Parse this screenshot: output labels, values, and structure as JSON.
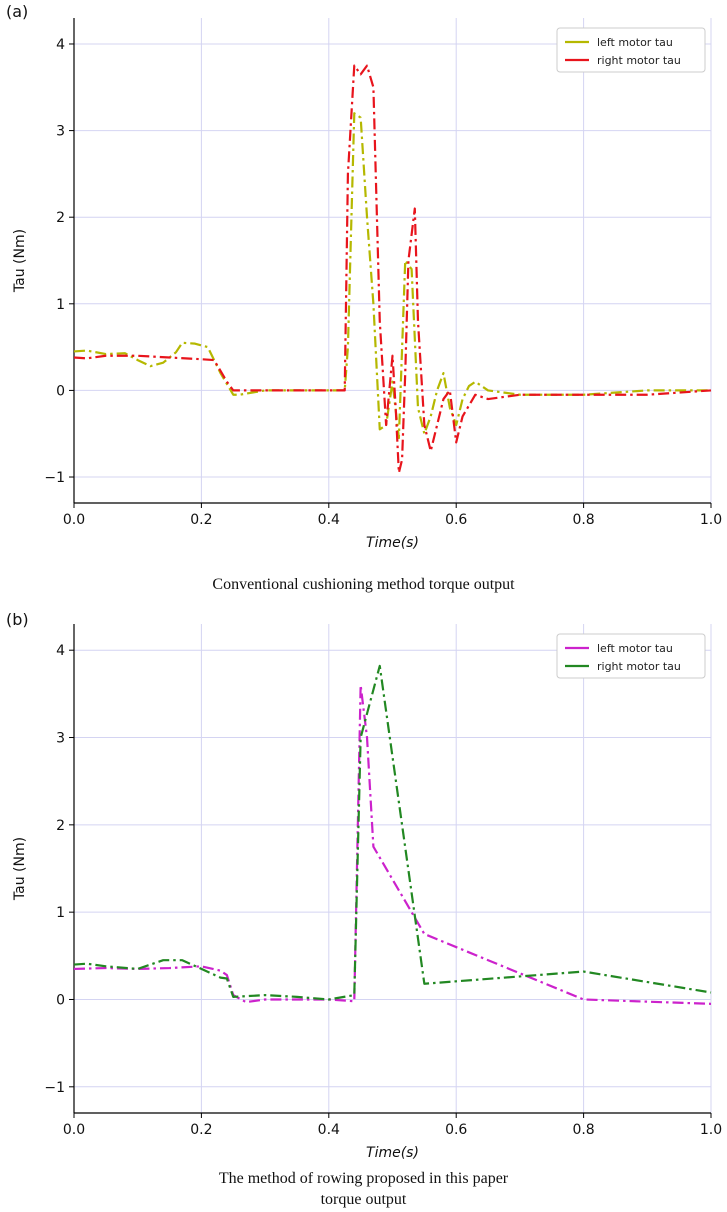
{
  "charts": [
    {
      "panel_label": "(a)",
      "caption_lines": [
        "Conventional cushioning method torque output"
      ]
    },
    {
      "panel_label": "(b)",
      "caption_lines": [
        "The method of rowing proposed in this paper",
        "torque output"
      ]
    }
  ],
  "chart_data": [
    {
      "type": "line",
      "xlabel": "Time(s)",
      "ylabel": "Tau (Nm)",
      "xlim": [
        0,
        1.0
      ],
      "ylim": [
        -1.3,
        4.3
      ],
      "xticks": [
        0.0,
        0.2,
        0.4,
        0.6,
        0.8,
        1.0
      ],
      "xtick_labels": [
        "0.0",
        "0.2",
        "0.4",
        "0.6",
        "0.8",
        "1.0"
      ],
      "yticks": [
        -1,
        0,
        1,
        2,
        3,
        4
      ],
      "ytick_labels": [
        "−1",
        "0",
        "1",
        "2",
        "3",
        "4"
      ],
      "grid": true,
      "legend_position": "top-right",
      "series": [
        {
          "name": "left motor tau",
          "color": "#b5b800",
          "dash": "dashdot",
          "x": [
            0.0,
            0.02,
            0.05,
            0.08,
            0.1,
            0.12,
            0.14,
            0.16,
            0.17,
            0.19,
            0.21,
            0.23,
            0.25,
            0.26,
            0.3,
            0.35,
            0.4,
            0.425,
            0.43,
            0.44,
            0.45,
            0.46,
            0.47,
            0.48,
            0.49,
            0.5,
            0.51,
            0.52,
            0.53,
            0.54,
            0.55,
            0.56,
            0.57,
            0.58,
            0.59,
            0.6,
            0.61,
            0.62,
            0.63,
            0.65,
            0.7,
            0.8,
            0.9,
            1.0
          ],
          "y": [
            0.45,
            0.46,
            0.42,
            0.43,
            0.35,
            0.28,
            0.32,
            0.44,
            0.55,
            0.54,
            0.5,
            0.2,
            -0.05,
            -0.05,
            0.0,
            0.0,
            0.0,
            0.0,
            0.5,
            3.2,
            3.15,
            2.0,
            1.0,
            -0.45,
            -0.4,
            0.1,
            -0.55,
            1.5,
            1.4,
            -0.2,
            -0.5,
            -0.3,
            0.0,
            0.2,
            -0.2,
            -0.4,
            -0.1,
            0.05,
            0.1,
            0.0,
            -0.05,
            -0.05,
            0.0,
            0.0
          ]
        },
        {
          "name": "right motor tau",
          "color": "#e8141c",
          "dash": "dashdot",
          "x": [
            0.0,
            0.02,
            0.05,
            0.1,
            0.15,
            0.2,
            0.22,
            0.24,
            0.25,
            0.3,
            0.35,
            0.4,
            0.425,
            0.43,
            0.44,
            0.45,
            0.46,
            0.47,
            0.48,
            0.49,
            0.5,
            0.505,
            0.51,
            0.515,
            0.52,
            0.525,
            0.53,
            0.535,
            0.54,
            0.55,
            0.56,
            0.57,
            0.58,
            0.59,
            0.6,
            0.61,
            0.63,
            0.65,
            0.7,
            0.8,
            0.9,
            1.0
          ],
          "y": [
            0.38,
            0.37,
            0.4,
            0.4,
            0.38,
            0.36,
            0.35,
            0.1,
            0.0,
            0.0,
            0.0,
            0.0,
            0.0,
            2.5,
            3.75,
            3.65,
            3.75,
            3.5,
            0.8,
            -0.4,
            0.4,
            -0.2,
            -0.95,
            -0.8,
            0.2,
            1.5,
            1.8,
            2.1,
            0.8,
            -0.4,
            -0.7,
            -0.4,
            -0.1,
            0.0,
            -0.6,
            -0.3,
            -0.05,
            -0.1,
            -0.05,
            -0.05,
            -0.05,
            0.0
          ]
        }
      ]
    },
    {
      "type": "line",
      "xlabel": "Time(s)",
      "ylabel": "Tau (Nm)",
      "xlim": [
        0,
        1.0
      ],
      "ylim": [
        -1.3,
        4.3
      ],
      "xticks": [
        0.0,
        0.2,
        0.4,
        0.6,
        0.8,
        1.0
      ],
      "xtick_labels": [
        "0.0",
        "0.2",
        "0.4",
        "0.6",
        "0.8",
        "1.0"
      ],
      "yticks": [
        -1,
        0,
        1,
        2,
        3,
        4
      ],
      "ytick_labels": [
        "−1",
        "0",
        "1",
        "2",
        "3",
        "4"
      ],
      "grid": true,
      "legend_position": "top-right",
      "series": [
        {
          "name": "left motor tau",
          "color": "#cc22cc",
          "dash": "dashdot",
          "x": [
            0.0,
            0.05,
            0.1,
            0.15,
            0.2,
            0.23,
            0.24,
            0.25,
            0.27,
            0.3,
            0.35,
            0.4,
            0.44,
            0.45,
            0.46,
            0.47,
            0.55,
            0.8,
            1.0
          ],
          "y": [
            0.35,
            0.36,
            0.35,
            0.36,
            0.38,
            0.33,
            0.28,
            0.05,
            -0.03,
            0.0,
            0.0,
            0.0,
            -0.02,
            3.6,
            3.0,
            1.75,
            0.75,
            0.0,
            -0.05
          ]
        },
        {
          "name": "right motor tau",
          "color": "#228822",
          "dash": "dashdot",
          "x": [
            0.0,
            0.02,
            0.05,
            0.1,
            0.14,
            0.17,
            0.2,
            0.23,
            0.24,
            0.25,
            0.3,
            0.35,
            0.4,
            0.44,
            0.45,
            0.48,
            0.55,
            0.8,
            1.0
          ],
          "y": [
            0.4,
            0.41,
            0.38,
            0.35,
            0.45,
            0.45,
            0.35,
            0.25,
            0.24,
            0.03,
            0.05,
            0.03,
            0.0,
            0.05,
            3.0,
            3.82,
            0.18,
            0.32,
            0.08
          ]
        }
      ]
    }
  ]
}
